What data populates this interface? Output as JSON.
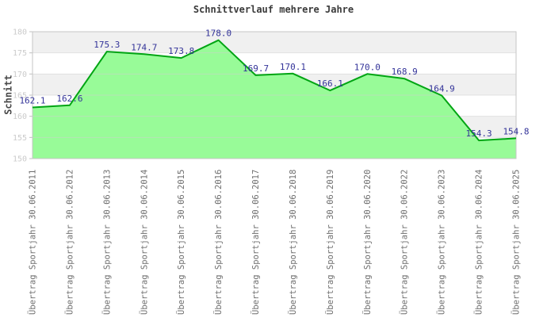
{
  "chart_data": {
    "type": "area",
    "title": "Schnittverlauf mehrere Jahre",
    "xlabel": "",
    "ylabel": "Schnitt",
    "categories": [
      "Übertrag Sportjahr 30.06.2011",
      "Übertrag Sportjahr 30.06.2012",
      "Übertrag Sportjahr 30.06.2013",
      "Übertrag Sportjahr 30.06.2014",
      "Übertrag Sportjahr 30.06.2015",
      "Übertrag Sportjahr 30.06.2016",
      "Übertrag Sportjahr 30.06.2017",
      "Übertrag Sportjahr 30.06.2018",
      "Übertrag Sportjahr 30.06.2019",
      "Übertrag Sportjahr 30.06.2020",
      "Übertrag Sportjahr 30.06.2022",
      "Übertrag Sportjahr 30.06.2023",
      "Übertrag Sportjahr 30.06.2024",
      "Übertrag Sportjahr 30.06.2025"
    ],
    "values": [
      162.1,
      162.6,
      175.3,
      174.7,
      173.8,
      178.0,
      169.7,
      170.1,
      166.1,
      170.0,
      168.9,
      164.9,
      154.3,
      154.8
    ],
    "ylim": [
      150,
      180
    ],
    "ytick_step": 5,
    "yticks": [
      150,
      155,
      160,
      165,
      170,
      175,
      180
    ],
    "legend": "none",
    "grid": "horizontal-bands-alternating",
    "colors": {
      "band_gray": "#f0f0f0",
      "band_white": "#ffffff",
      "gridline": "#cfcfcf",
      "plot_border": "#c6c6c6",
      "tick_mark": "#c0c0c0",
      "axis_text": "#cbcbcb",
      "xlabel_text": "#6e6e6e",
      "title_text": "#3a3a3a",
      "value_label": "#333399",
      "line": "#00a513",
      "area_fill": "#98fb98"
    }
  }
}
